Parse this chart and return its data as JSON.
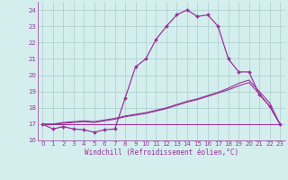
{
  "xlabel": "Windchill (Refroidissement éolien,°C)",
  "bg_color": "#d4eeee",
  "line_color": "#993399",
  "grid_color": "#aacccc",
  "x_values": [
    0,
    1,
    2,
    3,
    4,
    5,
    6,
    7,
    8,
    9,
    10,
    11,
    12,
    13,
    14,
    15,
    16,
    17,
    18,
    19,
    20,
    21,
    22,
    23
  ],
  "line1": [
    17.0,
    16.7,
    16.85,
    16.7,
    16.65,
    16.5,
    16.65,
    16.7,
    18.6,
    20.5,
    21.0,
    22.2,
    23.0,
    23.7,
    24.0,
    23.6,
    23.7,
    23.0,
    21.0,
    20.2,
    20.2,
    18.8,
    18.1,
    17.0
  ],
  "line2": [
    17.0,
    17.0,
    17.0,
    17.0,
    17.0,
    17.0,
    17.0,
    17.0,
    17.0,
    17.0,
    17.0,
    17.0,
    17.0,
    17.0,
    17.0,
    17.0,
    17.0,
    17.0,
    17.0,
    17.0,
    17.0,
    17.0,
    17.0,
    17.0
  ],
  "line3": [
    17.0,
    17.0,
    17.1,
    17.15,
    17.2,
    17.15,
    17.25,
    17.35,
    17.5,
    17.6,
    17.7,
    17.85,
    18.0,
    18.2,
    18.4,
    18.55,
    18.75,
    18.95,
    19.2,
    19.5,
    19.7,
    19.0,
    18.3,
    17.0
  ],
  "line4": [
    17.0,
    17.0,
    17.05,
    17.1,
    17.15,
    17.1,
    17.2,
    17.3,
    17.45,
    17.55,
    17.65,
    17.8,
    17.95,
    18.15,
    18.35,
    18.5,
    18.7,
    18.9,
    19.1,
    19.35,
    19.55,
    18.85,
    18.1,
    17.0
  ],
  "ylim": [
    16,
    24.5
  ],
  "xlim": [
    -0.5,
    23.5
  ],
  "yticks": [
    16,
    17,
    18,
    19,
    20,
    21,
    22,
    23,
    24
  ],
  "xticks": [
    0,
    1,
    2,
    3,
    4,
    5,
    6,
    7,
    8,
    9,
    10,
    11,
    12,
    13,
    14,
    15,
    16,
    17,
    18,
    19,
    20,
    21,
    22,
    23
  ]
}
